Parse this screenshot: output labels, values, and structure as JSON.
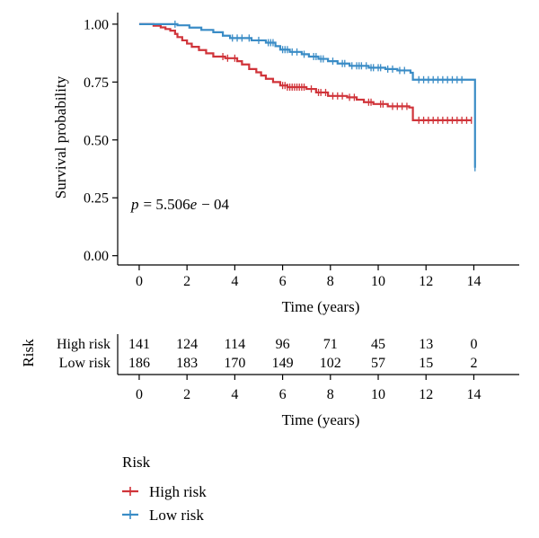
{
  "chart_data": [
    {
      "type": "line",
      "subtype": "kaplan-meier",
      "ylabel": "Survival probability",
      "xlabel": "Time (years)",
      "xlim": [
        -0.9,
        15.9
      ],
      "ylim": [
        -0.04,
        1.05
      ],
      "x_ticks": [
        0,
        2,
        4,
        6,
        8,
        10,
        12,
        14
      ],
      "y_ticks": [
        "0.00",
        "0.25",
        "0.50",
        "0.75",
        "1.00"
      ],
      "annotation": {
        "p_symbol": "p",
        "p_text": "= 5.506",
        "e_symbol": "e",
        "e_text": "− 04"
      },
      "series": [
        {
          "name": "High risk",
          "color": "#d0343a",
          "steps": [
            [
              0,
              1.0
            ],
            [
              0.6,
              0.993
            ],
            [
              0.9,
              0.986
            ],
            [
              1.1,
              0.979
            ],
            [
              1.3,
              0.972
            ],
            [
              1.5,
              0.958
            ],
            [
              1.6,
              0.944
            ],
            [
              1.8,
              0.93
            ],
            [
              2.0,
              0.916
            ],
            [
              2.2,
              0.902
            ],
            [
              2.5,
              0.888
            ],
            [
              2.8,
              0.874
            ],
            [
              3.1,
              0.86
            ],
            [
              3.6,
              0.853
            ],
            [
              4.1,
              0.84
            ],
            [
              4.3,
              0.826
            ],
            [
              4.6,
              0.806
            ],
            [
              4.9,
              0.792
            ],
            [
              5.1,
              0.778
            ],
            [
              5.3,
              0.764
            ],
            [
              5.6,
              0.75
            ],
            [
              5.9,
              0.735
            ],
            [
              6.2,
              0.728
            ],
            [
              7.0,
              0.72
            ],
            [
              7.4,
              0.705
            ],
            [
              7.9,
              0.69
            ],
            [
              8.7,
              0.684
            ],
            [
              9.1,
              0.674
            ],
            [
              9.4,
              0.663
            ],
            [
              9.8,
              0.655
            ],
            [
              10.4,
              0.645
            ],
            [
              11.3,
              0.64
            ],
            [
              11.45,
              0.585
            ],
            [
              13.9,
              0.585
            ]
          ],
          "censor_x": [
            3.5,
            3.7,
            4.0,
            6.0,
            6.1,
            6.2,
            6.3,
            6.4,
            6.5,
            6.6,
            6.7,
            6.8,
            6.9,
            7.2,
            7.5,
            7.6,
            7.8,
            8.1,
            8.3,
            8.5,
            8.8,
            9.0,
            9.6,
            9.7,
            10.1,
            10.2,
            10.6,
            10.8,
            11.0,
            11.2,
            11.7,
            11.9,
            12.1,
            12.3,
            12.5,
            12.7,
            12.9,
            13.1,
            13.3,
            13.5,
            13.7,
            13.9
          ]
        },
        {
          "name": "Low risk",
          "color": "#3a8cc6",
          "steps": [
            [
              0,
              1.0
            ],
            [
              1.6,
              0.995
            ],
            [
              2.1,
              0.985
            ],
            [
              2.6,
              0.975
            ],
            [
              3.1,
              0.965
            ],
            [
              3.5,
              0.95
            ],
            [
              3.8,
              0.94
            ],
            [
              4.7,
              0.93
            ],
            [
              5.3,
              0.92
            ],
            [
              5.7,
              0.905
            ],
            [
              5.9,
              0.89
            ],
            [
              6.3,
              0.88
            ],
            [
              6.8,
              0.87
            ],
            [
              7.1,
              0.86
            ],
            [
              7.5,
              0.85
            ],
            [
              7.9,
              0.84
            ],
            [
              8.3,
              0.83
            ],
            [
              8.8,
              0.82
            ],
            [
              9.6,
              0.812
            ],
            [
              10.3,
              0.806
            ],
            [
              10.8,
              0.8
            ],
            [
              11.35,
              0.79
            ],
            [
              11.45,
              0.76
            ],
            [
              14.0,
              0.76
            ],
            [
              14.05,
              0.38
            ]
          ],
          "censor_x": [
            1.5,
            3.9,
            4.1,
            4.3,
            4.6,
            5.0,
            5.4,
            5.5,
            5.6,
            6.0,
            6.1,
            6.2,
            6.4,
            6.6,
            6.9,
            7.3,
            7.4,
            7.6,
            7.7,
            8.1,
            8.5,
            8.6,
            8.9,
            9.1,
            9.2,
            9.3,
            9.5,
            9.7,
            9.8,
            10.0,
            10.1,
            10.4,
            10.6,
            10.9,
            11.1,
            11.7,
            11.9,
            12.1,
            12.3,
            12.5,
            12.7,
            12.9,
            13.1,
            13.3,
            13.5,
            14.05
          ]
        }
      ]
    },
    {
      "type": "table",
      "title": "Risk",
      "xlabel": "Time (years)",
      "x_ticks": [
        0,
        2,
        4,
        6,
        8,
        10,
        12,
        14
      ],
      "rows": [
        {
          "label": "High risk",
          "color": "#d0343a",
          "values": [
            "141",
            "124",
            "114",
            "96",
            "71",
            "45",
            "13",
            "0"
          ]
        },
        {
          "label": "Low risk",
          "color": "#3a8cc6",
          "values": [
            "186",
            "183",
            "170",
            "149",
            "102",
            "57",
            "15",
            "2"
          ]
        }
      ]
    }
  ],
  "legend": {
    "title": "Risk",
    "items": [
      {
        "label": "High risk",
        "color": "#d0343a"
      },
      {
        "label": "Low risk",
        "color": "#3a8cc6"
      }
    ]
  }
}
